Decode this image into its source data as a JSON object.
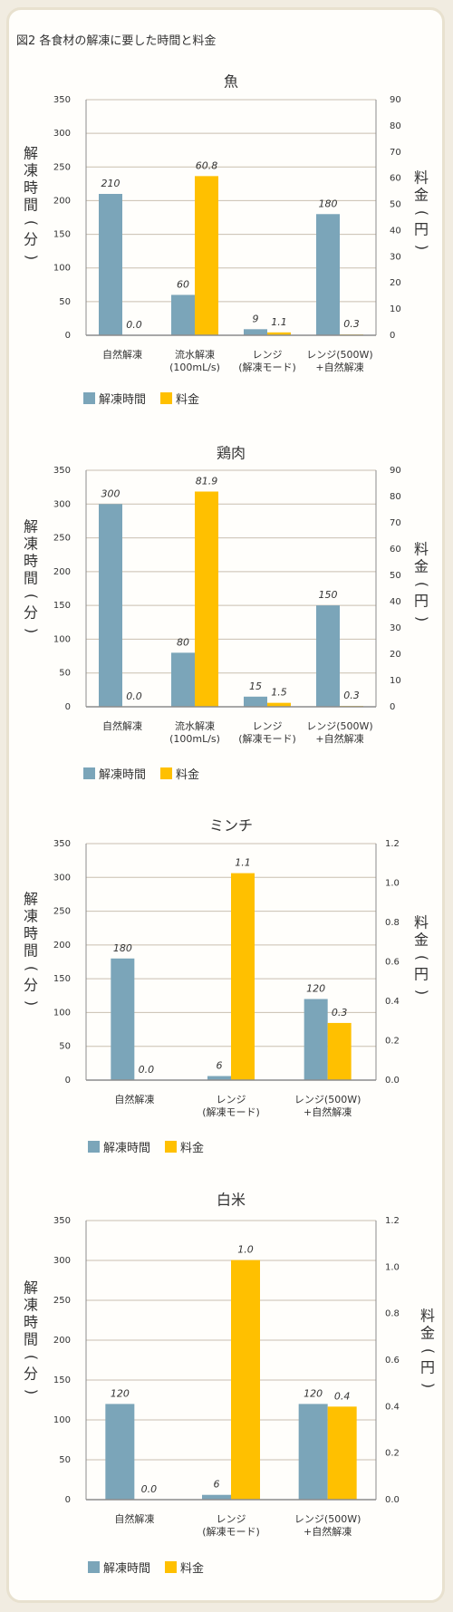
{
  "figure_title": "図2 各食材の解凍に要した時間と料金",
  "legend": {
    "time_label": "解凍時間",
    "cost_label": "料金"
  },
  "colors": {
    "time": "#7ba5b9",
    "cost": "#ffc000",
    "grid": "#c9bfb0",
    "axis": "#8c8c8c",
    "text": "#333333"
  },
  "chart_data": [
    {
      "type": "bar",
      "title": "魚",
      "ylabel": "解凍時間(分)",
      "y2label": "料金(円)",
      "categories": [
        [
          "自然解凍"
        ],
        [
          "流水解凍",
          "(100mL/s)"
        ],
        [
          "レンジ",
          "(解凍モード)"
        ],
        [
          "レンジ(500W)",
          "+自然解凍"
        ]
      ],
      "ylim": [
        0,
        350
      ],
      "yticks": [
        "0",
        "50",
        "100",
        "150",
        "200",
        "250",
        "300",
        "350"
      ],
      "y2lim": [
        0,
        90
      ],
      "y2ticks": [
        "0",
        "10",
        "20",
        "30",
        "40",
        "50",
        "60",
        "70",
        "80",
        "90"
      ],
      "series": [
        {
          "name": "解凍時間",
          "values": [
            210,
            60,
            9,
            180
          ],
          "labels": [
            "210",
            "60",
            "9",
            "180"
          ]
        },
        {
          "name": "料金",
          "axis": "right",
          "values": [
            0.0,
            60.8,
            1.1,
            0.3
          ],
          "labels": [
            "0.0",
            "60.8",
            "1.1",
            "0.3"
          ]
        }
      ]
    },
    {
      "type": "bar",
      "title": "鶏肉",
      "ylabel": "解凍時間(分)",
      "y2label": "料金(円)",
      "categories": [
        [
          "自然解凍"
        ],
        [
          "流水解凍",
          "(100mL/s)"
        ],
        [
          "レンジ",
          "(解凍モード)"
        ],
        [
          "レンジ(500W)",
          "+自然解凍"
        ]
      ],
      "ylim": [
        0,
        350
      ],
      "yticks": [
        "0",
        "50",
        "100",
        "150",
        "200",
        "250",
        "300",
        "350"
      ],
      "y2lim": [
        0,
        90
      ],
      "y2ticks": [
        "0",
        "10",
        "20",
        "30",
        "40",
        "50",
        "60",
        "70",
        "80",
        "90"
      ],
      "series": [
        {
          "name": "解凍時間",
          "values": [
            300,
            80,
            15,
            150
          ],
          "labels": [
            "300",
            "80",
            "15",
            "150"
          ]
        },
        {
          "name": "料金",
          "axis": "right",
          "values": [
            0.0,
            81.9,
            1.5,
            0.3
          ],
          "labels": [
            "0.0",
            "81.9",
            "1.5",
            "0.3"
          ]
        }
      ]
    },
    {
      "type": "bar",
      "title": "ミンチ",
      "ylabel": "解凍時間(分)",
      "y2label": "料金(円)",
      "categories": [
        [
          "自然解凍"
        ],
        [
          "レンジ",
          "(解凍モード)"
        ],
        [
          "レンジ(500W)",
          "+自然解凍"
        ]
      ],
      "ylim": [
        0,
        350
      ],
      "yticks": [
        "0",
        "50",
        "100",
        "150",
        "200",
        "250",
        "300",
        "350"
      ],
      "y2lim": [
        0,
        1.2
      ],
      "y2ticks": [
        "0.0",
        "0.2",
        "0.4",
        "0.6",
        "0.8",
        "1.0",
        "1.2"
      ],
      "series": [
        {
          "name": "解凍時間",
          "values": [
            180,
            6,
            120
          ],
          "labels": [
            "180",
            "6",
            "120"
          ]
        },
        {
          "name": "料金",
          "axis": "right",
          "values": [
            0.0,
            1.05,
            0.29
          ],
          "labels": [
            "0.0",
            "1.1",
            "0.3"
          ]
        }
      ]
    },
    {
      "type": "bar",
      "title": "白米",
      "ylabel": "解凍時間(分)",
      "y2label": "料金(円)",
      "categories": [
        [
          "自然解凍"
        ],
        [
          "レンジ",
          "(解凍モード)"
        ],
        [
          "レンジ(500W)",
          "+自然解凍"
        ]
      ],
      "ylim": [
        0,
        350
      ],
      "yticks": [
        "0",
        "50",
        "100",
        "150",
        "200",
        "250",
        "300",
        "350"
      ],
      "y2lim": [
        0,
        1.2
      ],
      "y2ticks": [
        "0.0",
        "0.2",
        "0.4",
        "0.6",
        "0.8",
        "1.0",
        "1.2"
      ],
      "series": [
        {
          "name": "解凍時間",
          "values": [
            120,
            6,
            120
          ],
          "labels": [
            "120",
            "6",
            "120"
          ]
        },
        {
          "name": "料金",
          "axis": "right",
          "values": [
            0.0,
            1.03,
            0.4
          ],
          "labels": [
            "0.0",
            "1.0",
            "0.4"
          ]
        }
      ]
    }
  ]
}
